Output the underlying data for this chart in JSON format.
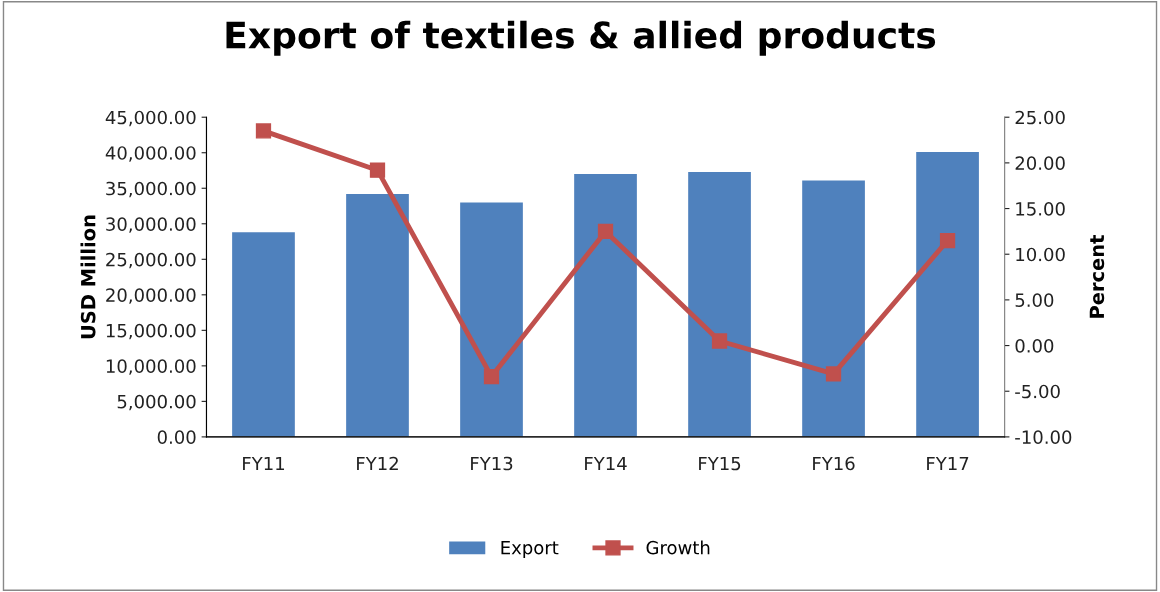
{
  "chart_data": {
    "type": "bar",
    "title": "Export of textiles & allied products",
    "ylabel": "USD Million",
    "y2label": "Percent",
    "categories": [
      "FY11",
      "FY12",
      "FY13",
      "FY14",
      "FY15",
      "FY16",
      "FY17"
    ],
    "series": [
      {
        "name": "Export",
        "color": "#4f81bd",
        "values": [
          28800,
          34200,
          33000,
          37000,
          37300,
          36100,
          40100
        ]
      },
      {
        "name": "Growth",
        "type": "line",
        "axis": "y2",
        "color": "#c0504d",
        "marker": "square",
        "values": [
          23.5,
          19.2,
          -3.4,
          12.5,
          0.5,
          -3.1,
          11.5
        ]
      }
    ],
    "ylim": [
      0,
      45000
    ],
    "yticks": [
      {
        "value": 0,
        "label": "0.00"
      },
      {
        "value": 5000,
        "label": "5,000.00"
      },
      {
        "value": 10000,
        "label": "10,000.00"
      },
      {
        "value": 15000,
        "label": "15,000.00"
      },
      {
        "value": 20000,
        "label": "20,000.00"
      },
      {
        "value": 25000,
        "label": "25,000.00"
      },
      {
        "value": 30000,
        "label": "30,000.00"
      },
      {
        "value": 35000,
        "label": "35,000.00"
      },
      {
        "value": 40000,
        "label": "40,000.00"
      },
      {
        "value": 45000,
        "label": "45,000.00"
      }
    ],
    "y2lim": [
      -10,
      25
    ],
    "y2ticks": [
      {
        "value": -10,
        "label": "-10.00"
      },
      {
        "value": -5,
        "label": "-5.00"
      },
      {
        "value": 0,
        "label": "0.00"
      },
      {
        "value": 5,
        "label": "5.00"
      },
      {
        "value": 10,
        "label": "10.00"
      },
      {
        "value": 15,
        "label": "15.00"
      },
      {
        "value": 20,
        "label": "20.00"
      },
      {
        "value": 25,
        "label": "25.00"
      }
    ],
    "legend": "bottom"
  }
}
